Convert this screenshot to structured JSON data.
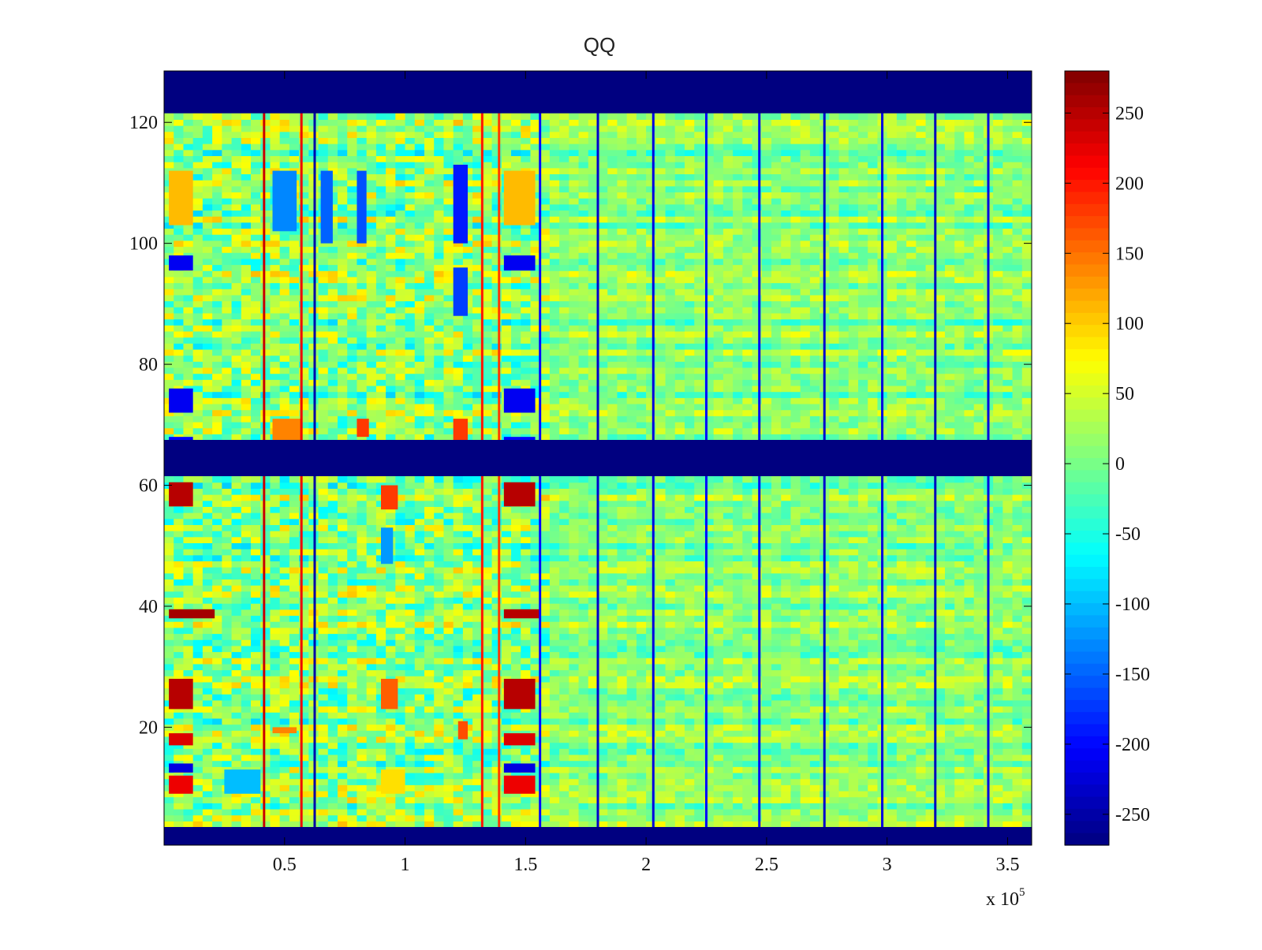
{
  "chart_data": {
    "type": "heatmap",
    "title": "QQ",
    "xlabel": "",
    "ylabel": "",
    "x_multiplier_label": "x 10",
    "x_multiplier_exponent": "5",
    "xlim": [
      0,
      3.6
    ],
    "ylim": [
      0.5,
      128.5
    ],
    "xticks": [
      0.5,
      1,
      1.5,
      2,
      2.5,
      3,
      3.5
    ],
    "xtick_labels": [
      "0.5",
      "1",
      "1.5",
      "2",
      "2.5",
      "3",
      "3.5"
    ],
    "yticks": [
      20,
      40,
      60,
      80,
      100,
      120
    ],
    "ytick_labels": [
      "20",
      "40",
      "60",
      "80",
      "100",
      "120"
    ],
    "colormap": "jet",
    "clim": [
      -272,
      280
    ],
    "colorbar_ticks": [
      250,
      200,
      150,
      100,
      50,
      0,
      -50,
      -100,
      -150,
      -200,
      -250
    ],
    "colorbar_labels": [
      "250",
      "200",
      "150",
      "100",
      "50",
      "0",
      "-50",
      "-100",
      "-150",
      "-200",
      "-250"
    ],
    "background_value": 15,
    "masked_row_bands": [
      {
        "from": 0.5,
        "to": 3.5,
        "value": -272
      },
      {
        "from": 61.5,
        "to": 67.5,
        "value": -272
      },
      {
        "from": 121.5,
        "to": 128.5,
        "value": -272
      }
    ],
    "vertical_lines": [
      {
        "x": 0.415,
        "value": 240
      },
      {
        "x": 0.57,
        "value": 220
      },
      {
        "x": 0.625,
        "value": -250
      },
      {
        "x": 1.32,
        "value": 200
      },
      {
        "x": 1.39,
        "value": 180
      },
      {
        "x": 1.56,
        "value": -200
      },
      {
        "x": 1.8,
        "value": -230
      },
      {
        "x": 2.03,
        "value": -220
      },
      {
        "x": 2.25,
        "value": -200
      },
      {
        "x": 2.47,
        "value": -210
      },
      {
        "x": 2.74,
        "value": -230
      },
      {
        "x": 2.98,
        "value": -220
      },
      {
        "x": 3.2,
        "value": -240
      },
      {
        "x": 3.42,
        "value": -220
      }
    ],
    "patches": [
      {
        "x0": 0.02,
        "x1": 0.12,
        "y0": 103,
        "y1": 112,
        "value": 110
      },
      {
        "x0": 0.02,
        "x1": 0.12,
        "y0": 95.5,
        "y1": 98,
        "value": -210
      },
      {
        "x0": 0.02,
        "x1": 0.12,
        "y0": 72,
        "y1": 76,
        "value": -210
      },
      {
        "x0": 0.02,
        "x1": 0.12,
        "y0": 56.5,
        "y1": 60.5,
        "value": 250
      },
      {
        "x0": 0.02,
        "x1": 0.21,
        "y0": 38,
        "y1": 39.5,
        "value": 260
      },
      {
        "x0": 0.02,
        "x1": 0.12,
        "y0": 23,
        "y1": 28,
        "value": 250
      },
      {
        "x0": 0.02,
        "x1": 0.12,
        "y0": 17,
        "y1": 19,
        "value": 230
      },
      {
        "x0": 0.02,
        "x1": 0.12,
        "y0": 12.5,
        "y1": 14,
        "value": -220
      },
      {
        "x0": 0.02,
        "x1": 0.12,
        "y0": 9,
        "y1": 12,
        "value": 220
      },
      {
        "x0": 0.02,
        "x1": 0.12,
        "y0": 66,
        "y1": 68,
        "value": -200
      },
      {
        "x0": 1.41,
        "x1": 1.54,
        "y0": 103,
        "y1": 112,
        "value": 110
      },
      {
        "x0": 1.41,
        "x1": 1.54,
        "y0": 95.5,
        "y1": 98,
        "value": -210
      },
      {
        "x0": 1.41,
        "x1": 1.54,
        "y0": 72,
        "y1": 76,
        "value": -210
      },
      {
        "x0": 1.41,
        "x1": 1.54,
        "y0": 56.5,
        "y1": 60.5,
        "value": 250
      },
      {
        "x0": 1.41,
        "x1": 1.56,
        "y0": 38,
        "y1": 39.5,
        "value": 250
      },
      {
        "x0": 1.41,
        "x1": 1.54,
        "y0": 23,
        "y1": 28,
        "value": 250
      },
      {
        "x0": 1.41,
        "x1": 1.54,
        "y0": 17,
        "y1": 19,
        "value": 230
      },
      {
        "x0": 1.41,
        "x1": 1.54,
        "y0": 12.5,
        "y1": 14,
        "value": -220
      },
      {
        "x0": 1.41,
        "x1": 1.54,
        "y0": 9,
        "y1": 12,
        "value": 220
      },
      {
        "x0": 1.41,
        "x1": 1.54,
        "y0": 66,
        "y1": 68,
        "value": -200
      },
      {
        "x0": 0.45,
        "x1": 0.55,
        "y0": 102,
        "y1": 112,
        "value": -130
      },
      {
        "x0": 0.65,
        "x1": 0.7,
        "y0": 100,
        "y1": 112,
        "value": -150
      },
      {
        "x0": 0.8,
        "x1": 0.84,
        "y0": 100,
        "y1": 112,
        "value": -160
      },
      {
        "x0": 1.2,
        "x1": 1.26,
        "y0": 100,
        "y1": 113,
        "value": -190
      },
      {
        "x0": 1.2,
        "x1": 1.26,
        "y0": 88,
        "y1": 96,
        "value": -170
      },
      {
        "x0": 0.45,
        "x1": 0.57,
        "y0": 67.5,
        "y1": 71,
        "value": 140
      },
      {
        "x0": 0.8,
        "x1": 0.85,
        "y0": 68,
        "y1": 71,
        "value": 180
      },
      {
        "x0": 1.2,
        "x1": 1.26,
        "y0": 67.5,
        "y1": 71,
        "value": 180
      },
      {
        "x0": 0.9,
        "x1": 0.97,
        "y0": 56,
        "y1": 60,
        "value": 180
      },
      {
        "x0": 0.9,
        "x1": 0.97,
        "y0": 23,
        "y1": 28,
        "value": 160
      },
      {
        "x0": 0.9,
        "x1": 1.0,
        "y0": 9,
        "y1": 13,
        "value": 90
      },
      {
        "x0": 0.25,
        "x1": 0.4,
        "y0": 9,
        "y1": 13,
        "value": -100
      },
      {
        "x0": 0.9,
        "x1": 0.95,
        "y0": 47,
        "y1": 53,
        "value": -120
      },
      {
        "x0": 1.22,
        "x1": 1.26,
        "y0": 18,
        "y1": 21,
        "value": 170
      },
      {
        "x0": 0.45,
        "x1": 0.55,
        "y0": 19,
        "y1": 20,
        "value": 140
      }
    ]
  }
}
